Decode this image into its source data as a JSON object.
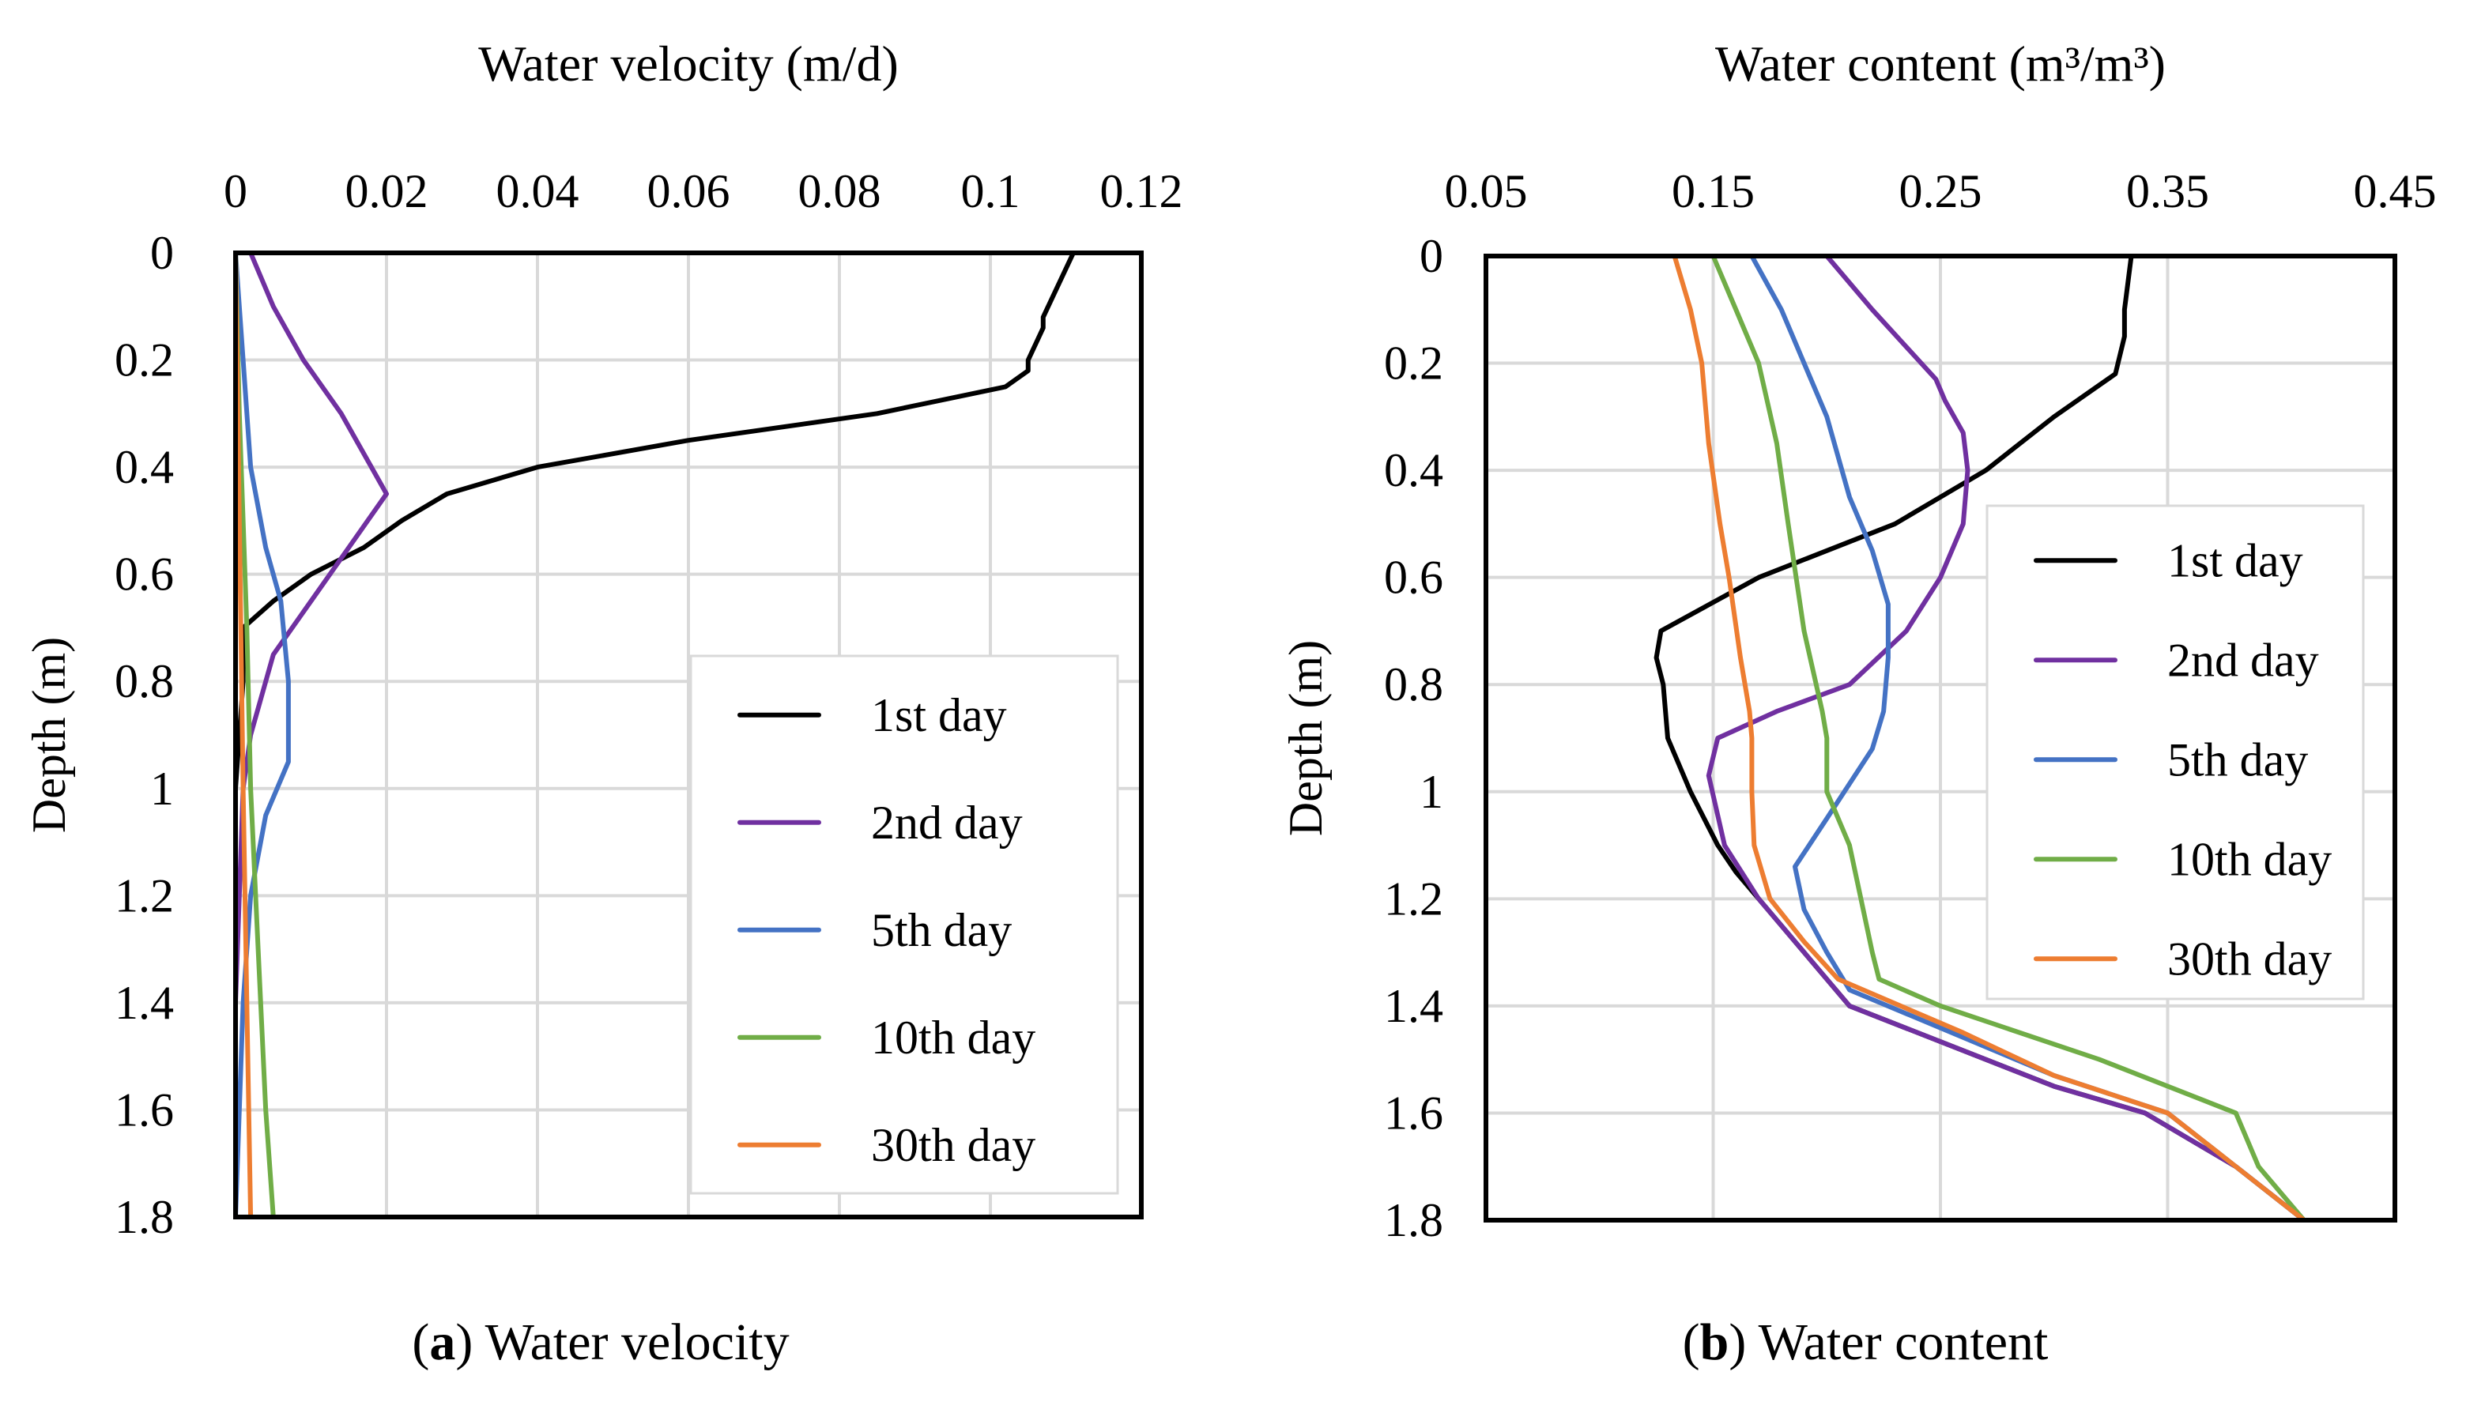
{
  "chart_data": [
    {
      "type": "line",
      "title": "Water velocity (m/d)",
      "xlabel": "Water velocity (m/d)",
      "ylabel": "Depth (m)",
      "xlim": [
        0,
        0.12
      ],
      "ylim": [
        0,
        1.8
      ],
      "x_ticks": [
        "0",
        "0.02",
        "0.04",
        "0.06",
        "0.08",
        "0.1",
        "0.12"
      ],
      "y_ticks": [
        "0",
        "0.2",
        "0.4",
        "0.6",
        "0.8",
        "1",
        "1.2",
        "1.4",
        "1.6",
        "1.8"
      ],
      "legend_position": "bottom-right",
      "caption_letter": "a",
      "caption_text": "Water velocity",
      "series": [
        {
          "name": "1st day",
          "color": "#000000",
          "points": [
            [
              0.111,
              0
            ],
            [
              0.107,
              0.12
            ],
            [
              0.107,
              0.14
            ],
            [
              0.105,
              0.2
            ],
            [
              0.105,
              0.22
            ],
            [
              0.102,
              0.25
            ],
            [
              0.085,
              0.3
            ],
            [
              0.06,
              0.35
            ],
            [
              0.04,
              0.4
            ],
            [
              0.028,
              0.45
            ],
            [
              0.022,
              0.5
            ],
            [
              0.017,
              0.55
            ],
            [
              0.01,
              0.6
            ],
            [
              0.005,
              0.65
            ],
            [
              0.001,
              0.7
            ],
            [
              0.001,
              0.75
            ],
            [
              0.001,
              0.8
            ],
            [
              0.0005,
              0.9
            ],
            [
              0.0,
              1.0
            ],
            [
              0.0,
              1.8
            ]
          ]
        },
        {
          "name": "2nd day",
          "color": "#7030A0",
          "points": [
            [
              0.002,
              0
            ],
            [
              0.005,
              0.1
            ],
            [
              0.009,
              0.2
            ],
            [
              0.014,
              0.3
            ],
            [
              0.02,
              0.45
            ],
            [
              0.015,
              0.55
            ],
            [
              0.01,
              0.65
            ],
            [
              0.005,
              0.75
            ],
            [
              0.002,
              0.9
            ],
            [
              0.001,
              1.0
            ],
            [
              0.0005,
              1.2
            ],
            [
              0.0,
              1.4
            ],
            [
              0.0,
              1.8
            ]
          ]
        },
        {
          "name": "5th day",
          "color": "#4472C4",
          "points": [
            [
              0.0,
              0
            ],
            [
              0.001,
              0.2
            ],
            [
              0.002,
              0.4
            ],
            [
              0.004,
              0.55
            ],
            [
              0.006,
              0.65
            ],
            [
              0.007,
              0.8
            ],
            [
              0.007,
              0.95
            ],
            [
              0.004,
              1.05
            ],
            [
              0.002,
              1.2
            ],
            [
              0.001,
              1.4
            ],
            [
              0.0005,
              1.6
            ],
            [
              0.0,
              1.8
            ]
          ]
        },
        {
          "name": "10th day",
          "color": "#70AD47",
          "points": [
            [
              0.0,
              0
            ],
            [
              0.0005,
              0.3
            ],
            [
              0.001,
              0.5
            ],
            [
              0.0015,
              0.7
            ],
            [
              0.002,
              1.0
            ],
            [
              0.003,
              1.3
            ],
            [
              0.004,
              1.6
            ],
            [
              0.005,
              1.8
            ]
          ]
        },
        {
          "name": "30th day",
          "color": "#ED7D31",
          "points": [
            [
              0.0,
              0
            ],
            [
              0.0005,
              0.5
            ],
            [
              0.001,
              1.0
            ],
            [
              0.0015,
              1.4
            ],
            [
              0.002,
              1.8
            ]
          ]
        }
      ]
    },
    {
      "type": "line",
      "title": "Water content (m³/m³)",
      "xlabel": "Water content (m³/m³)",
      "ylabel": "Depth (m)",
      "xlim": [
        0.05,
        0.45
      ],
      "ylim": [
        0,
        1.8
      ],
      "x_ticks": [
        "0.05",
        "0.15",
        "0.25",
        "0.35",
        "0.45"
      ],
      "y_ticks": [
        "0",
        "0.2",
        "0.4",
        "0.6",
        "0.8",
        "1",
        "1.2",
        "1.4",
        "1.6",
        "1.8"
      ],
      "legend_position": "right",
      "caption_letter": "b",
      "caption_text": "Water content",
      "series": [
        {
          "name": "1st day",
          "color": "#000000",
          "points": [
            [
              0.334,
              0
            ],
            [
              0.331,
              0.1
            ],
            [
              0.331,
              0.15
            ],
            [
              0.327,
              0.22
            ],
            [
              0.3,
              0.3
            ],
            [
              0.27,
              0.4
            ],
            [
              0.23,
              0.5
            ],
            [
              0.17,
              0.6
            ],
            [
              0.127,
              0.7
            ],
            [
              0.125,
              0.75
            ],
            [
              0.128,
              0.8
            ],
            [
              0.13,
              0.9
            ],
            [
              0.14,
              1.0
            ],
            [
              0.152,
              1.1
            ],
            [
              0.16,
              1.15
            ],
            [
              0.18,
              1.25
            ],
            [
              0.19,
              1.3
            ],
            [
              0.21,
              1.4
            ],
            [
              0.3,
              1.55
            ],
            [
              0.34,
              1.6
            ],
            [
              0.38,
              1.7
            ],
            [
              0.41,
              1.8
            ]
          ]
        },
        {
          "name": "2nd day",
          "color": "#7030A0",
          "points": [
            [
              0.2,
              0
            ],
            [
              0.22,
              0.1
            ],
            [
              0.248,
              0.23
            ],
            [
              0.252,
              0.27
            ],
            [
              0.26,
              0.33
            ],
            [
              0.262,
              0.4
            ],
            [
              0.26,
              0.5
            ],
            [
              0.25,
              0.6
            ],
            [
              0.235,
              0.7
            ],
            [
              0.21,
              0.8
            ],
            [
              0.178,
              0.85
            ],
            [
              0.152,
              0.9
            ],
            [
              0.148,
              0.97
            ],
            [
              0.155,
              1.1
            ],
            [
              0.17,
              1.2
            ],
            [
              0.19,
              1.3
            ],
            [
              0.21,
              1.4
            ],
            [
              0.3,
              1.55
            ],
            [
              0.34,
              1.6
            ],
            [
              0.38,
              1.7
            ],
            [
              0.41,
              1.8
            ]
          ]
        },
        {
          "name": "5th day",
          "color": "#4472C4",
          "points": [
            [
              0.167,
              0
            ],
            [
              0.18,
              0.1
            ],
            [
              0.19,
              0.2
            ],
            [
              0.2,
              0.3
            ],
            [
              0.21,
              0.45
            ],
            [
              0.22,
              0.55
            ],
            [
              0.227,
              0.65
            ],
            [
              0.227,
              0.75
            ],
            [
              0.225,
              0.85
            ],
            [
              0.22,
              0.92
            ],
            [
              0.2,
              1.05
            ],
            [
              0.186,
              1.14
            ],
            [
              0.19,
              1.22
            ],
            [
              0.2,
              1.3
            ],
            [
              0.21,
              1.37
            ],
            [
              0.3,
              1.53
            ],
            [
              0.35,
              1.6
            ],
            [
              0.38,
              1.7
            ],
            [
              0.41,
              1.8
            ]
          ]
        },
        {
          "name": "10th day",
          "color": "#70AD47",
          "points": [
            [
              0.15,
              0
            ],
            [
              0.16,
              0.1
            ],
            [
              0.17,
              0.2
            ],
            [
              0.178,
              0.35
            ],
            [
              0.183,
              0.5
            ],
            [
              0.19,
              0.7
            ],
            [
              0.198,
              0.85
            ],
            [
              0.2,
              0.9
            ],
            [
              0.2,
              1.0
            ],
            [
              0.21,
              1.1
            ],
            [
              0.215,
              1.2
            ],
            [
              0.22,
              1.3
            ],
            [
              0.223,
              1.35
            ],
            [
              0.25,
              1.4
            ],
            [
              0.32,
              1.5
            ],
            [
              0.38,
              1.6
            ],
            [
              0.39,
              1.7
            ],
            [
              0.41,
              1.8
            ]
          ]
        },
        {
          "name": "30th day",
          "color": "#ED7D31",
          "points": [
            [
              0.133,
              0
            ],
            [
              0.14,
              0.1
            ],
            [
              0.145,
              0.2
            ],
            [
              0.148,
              0.35
            ],
            [
              0.153,
              0.5
            ],
            [
              0.157,
              0.6
            ],
            [
              0.162,
              0.75
            ],
            [
              0.166,
              0.85
            ],
            [
              0.167,
              0.9
            ],
            [
              0.167,
              1.0
            ],
            [
              0.168,
              1.1
            ],
            [
              0.175,
              1.2
            ],
            [
              0.19,
              1.28
            ],
            [
              0.205,
              1.35
            ],
            [
              0.26,
              1.45
            ],
            [
              0.3,
              1.53
            ],
            [
              0.35,
              1.6
            ],
            [
              0.38,
              1.7
            ],
            [
              0.41,
              1.8
            ]
          ]
        }
      ]
    }
  ]
}
